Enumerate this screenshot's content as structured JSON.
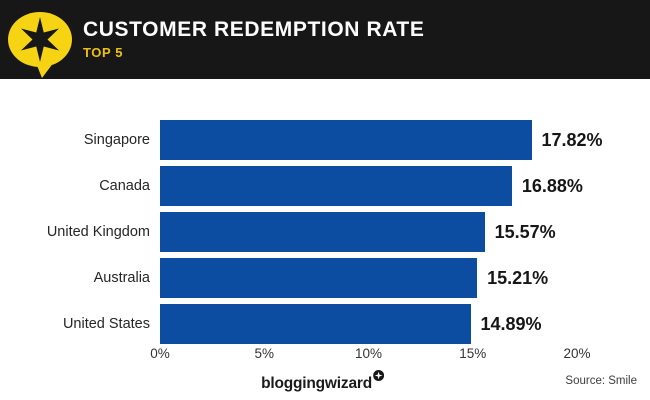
{
  "header": {
    "title": "CUSTOMER REDEMPTION RATE",
    "subtitle": "TOP 5",
    "colors": {
      "banner_background": "#171717",
      "title_text": "#fdfdfd",
      "subtitle_text": "#eec111",
      "logo_yellow": "#f6d313",
      "logo_star": "#171717"
    }
  },
  "chart_data": {
    "type": "bar",
    "orientation": "horizontal",
    "title": "CUSTOMER REDEMPTION RATE",
    "subtitle": "TOP 5",
    "categories": [
      "Singapore",
      "Canada",
      "United Kingdom",
      "Australia",
      "United States"
    ],
    "values": [
      17.82,
      16.88,
      15.57,
      15.21,
      14.89
    ],
    "value_labels": [
      "17.82%",
      "16.88%",
      "15.57%",
      "15.21%",
      "14.89%"
    ],
    "x_ticks": [
      "0%",
      "5%",
      "10%",
      "15%",
      "20%"
    ],
    "x_tick_values": [
      0,
      5,
      10,
      15,
      20
    ],
    "xlim": [
      0,
      20
    ],
    "grid": false,
    "legend": "none",
    "bar_color": "#0d4da1",
    "value_label_color": "#161616"
  },
  "footer": {
    "brand": "bloggingwizard",
    "brand_badge": "star-badge",
    "source": "Source: Smile"
  }
}
